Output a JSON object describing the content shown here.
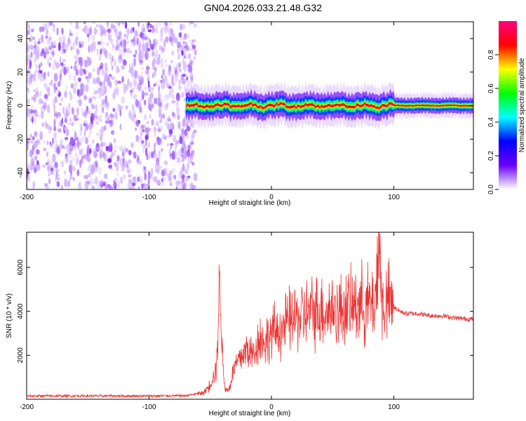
{
  "figure_title": "GN04.2026.033.21.48.G32",
  "chart_data": [
    {
      "type": "heatmap",
      "title": "",
      "xlabel": "Height of straight line (km)",
      "ylabel": "Frequency (Hz)",
      "xlim": [
        -200,
        165
      ],
      "ylim": [
        -50,
        50
      ],
      "x_ticks": [
        "-200",
        "-100",
        "0",
        "100"
      ],
      "y_ticks": [
        "-40",
        "-20",
        "0",
        "20",
        "40"
      ],
      "colorbar": {
        "label": "Normalized spectral amplitude",
        "range": [
          0,
          1
        ],
        "ticks": [
          "0.0",
          "0.2",
          "0.4",
          "0.6",
          "0.8"
        ],
        "colormap": [
          "#ffffff",
          "#6a00ff",
          "#0000ff",
          "#00ffff",
          "#00ff00",
          "#ffff00",
          "#ff0000",
          "#ff0080"
        ]
      },
      "noise_region_km": [
        -200,
        -65
      ],
      "signal_band": {
        "x_start_km": -70,
        "center_hz": 0,
        "half_width_hz": 5,
        "peak_amplitude": 0.9
      }
    },
    {
      "type": "line",
      "title": "",
      "xlabel": "Height of straight line (km)",
      "ylabel": "SNR (10 * v/v)",
      "xlim": [
        -200,
        165
      ],
      "ylim": [
        0,
        7600
      ],
      "x_ticks": [
        "-200",
        "-100",
        "0",
        "100"
      ],
      "y_ticks": [
        "2000",
        "4000",
        "6000"
      ],
      "color": "#ee3333",
      "series": [
        {
          "x": [
            -200,
            -150,
            -100,
            -70,
            -55,
            -50,
            -45,
            -42,
            -40,
            -38,
            -35,
            -30,
            -25,
            -20,
            -15,
            -10,
            -5,
            0,
            5,
            10,
            15,
            20,
            25,
            30,
            35,
            40,
            45,
            50,
            55,
            60,
            65,
            70,
            75,
            80,
            85,
            88,
            90,
            95,
            100,
            105,
            110,
            120,
            130,
            140,
            150,
            160,
            165
          ],
          "values": [
            150,
            150,
            150,
            160,
            300,
            700,
            1400,
            5700,
            1800,
            500,
            400,
            1500,
            1900,
            2300,
            2000,
            2800,
            2600,
            3000,
            3100,
            3300,
            3600,
            3700,
            3800,
            3900,
            4000,
            4100,
            4000,
            4100,
            4000,
            4200,
            4100,
            4400,
            4300,
            4300,
            4500,
            7500,
            4300,
            4400,
            4200,
            4000,
            3900,
            3900,
            3800,
            3800,
            3700,
            3650,
            3650
          ]
        }
      ]
    }
  ]
}
